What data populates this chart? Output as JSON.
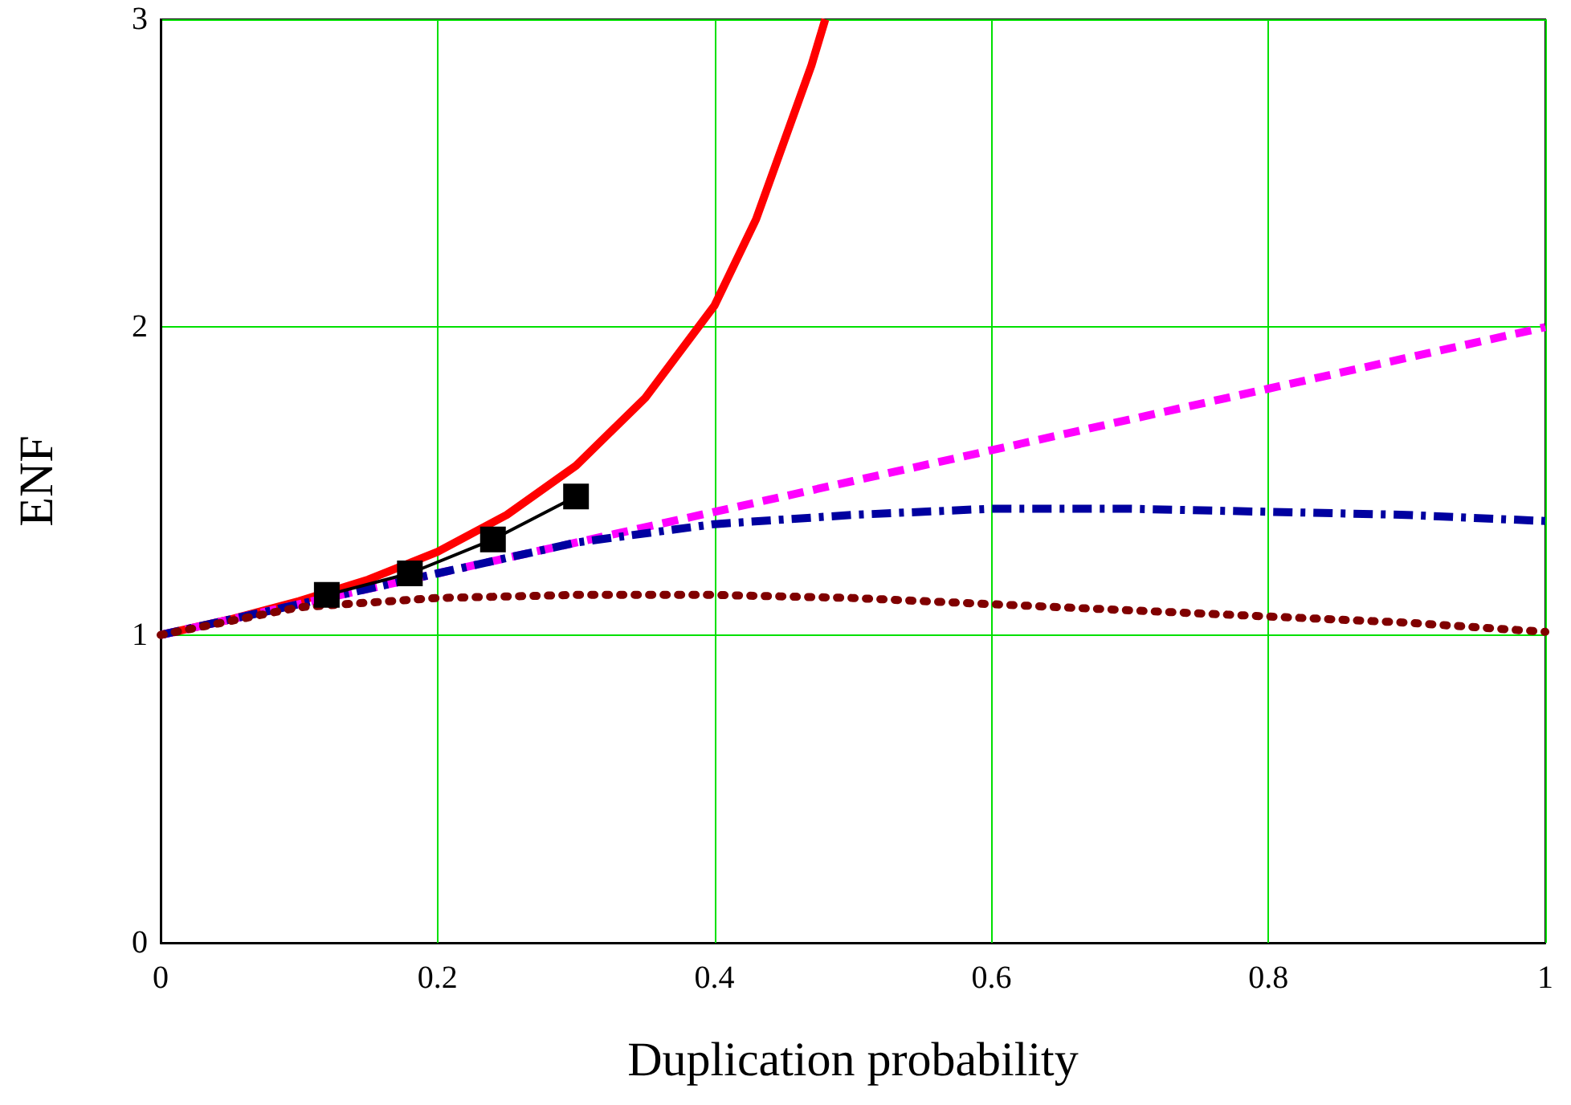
{
  "chart_data": {
    "type": "line",
    "xlabel": "Duplication probability",
    "ylabel": "ENF",
    "xlim": [
      0,
      1
    ],
    "xticks": [
      0,
      0.2,
      0.4,
      0.6,
      0.8,
      1
    ],
    "ylim": [
      0,
      3
    ],
    "yticks": [
      0,
      1,
      2,
      3
    ],
    "grid": true,
    "series": [
      {
        "color": "#ff0000",
        "line_style": "solid",
        "marker": "none",
        "x": [
          0,
          0.05,
          0.1,
          0.15,
          0.2,
          0.25,
          0.3,
          0.35,
          0.4,
          0.43,
          0.45,
          0.47,
          0.48
        ],
        "values": [
          1,
          1.05,
          1.11,
          1.18,
          1.27,
          1.39,
          1.55,
          1.77,
          2.07,
          2.35,
          2.6,
          2.85,
          3
        ]
      },
      {
        "color": "#ff00ff",
        "line_style": "dashed",
        "marker": "none",
        "x": [
          0,
          0.1,
          0.2,
          0.3,
          0.4,
          0.5,
          0.6,
          0.7,
          0.8,
          0.9,
          1
        ],
        "values": [
          1,
          1.1,
          1.2,
          1.3,
          1.4,
          1.5,
          1.6,
          1.7,
          1.8,
          1.9,
          2.0
        ]
      },
      {
        "color": "#0000a0",
        "line_style": "dashed",
        "marker": "none",
        "x": [
          0,
          0.1,
          0.2,
          0.3,
          0.4,
          0.5,
          0.6,
          0.7,
          0.8,
          0.9,
          1
        ],
        "values": [
          1,
          1.1,
          1.2,
          1.3,
          1.36,
          1.39,
          1.41,
          1.41,
          1.4,
          1.39,
          1.37
        ]
      },
      {
        "color": "#800000",
        "line_style": "dotted",
        "marker": "none",
        "x": [
          0,
          0.1,
          0.2,
          0.3,
          0.4,
          0.5,
          0.6,
          0.7,
          0.8,
          0.9,
          1
        ],
        "values": [
          1,
          1.09,
          1.12,
          1.13,
          1.13,
          1.12,
          1.1,
          1.08,
          1.06,
          1.04,
          1.01
        ]
      },
      {
        "color": "#000000",
        "line_style": "solid",
        "marker": "square",
        "x": [
          0.12,
          0.18,
          0.24,
          0.3
        ],
        "values": [
          1.13,
          1.2,
          1.31,
          1.45
        ]
      }
    ]
  }
}
